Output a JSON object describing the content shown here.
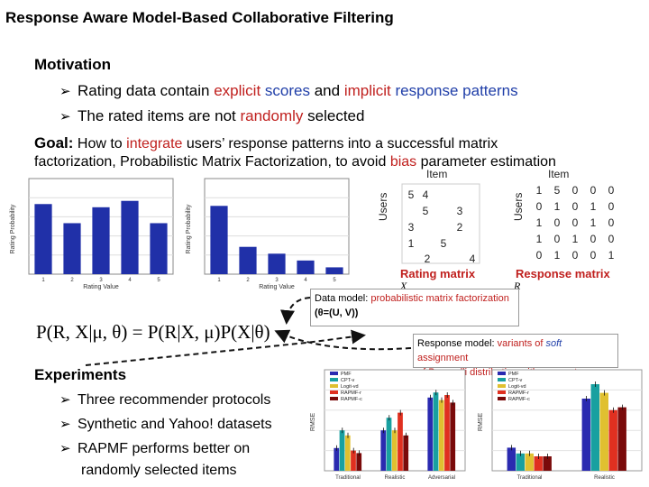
{
  "slide": {
    "title": "Response Aware Model-Based Collaborative Filtering",
    "motivation_heading": "Motivation",
    "motivation_bullets": [
      {
        "pre": "Rating data contain ",
        "red1": "explicit",
        "mid1": " ",
        "blue1": "scores",
        "mid2": " and ",
        "red2": "implicit",
        "mid3": " ",
        "blue2": "response patterns"
      },
      {
        "pre": "The rated items are not ",
        "red1": "randomly",
        "post": " selected"
      }
    ],
    "goal": {
      "label": "Goal:",
      "pre": " How to ",
      "red1": "integrate",
      "post1": " users’ response patterns into a successful matrix",
      "line2_pre": "factorization, Probabilistic Matrix Factorization, to avoid ",
      "red2": "bias",
      "line2_post": " parameter estimation"
    },
    "rating_matrix": {
      "item_label": "Item",
      "users_label": "Users",
      "caption": "Rating matrix",
      "symbol": "X",
      "cells": [
        "5",
        "4",
        "5",
        "3",
        "3",
        "2",
        "1",
        "5",
        "2",
        "4"
      ]
    },
    "response_matrix": {
      "item_label": "Item",
      "users_label": "Users",
      "caption": "Response matrix",
      "symbol": "R",
      "rows": [
        [
          "1",
          "5",
          "0",
          "0",
          "0"
        ],
        [
          "0",
          "1",
          "0",
          "1",
          "0"
        ],
        [
          "1",
          "0",
          "0",
          "1",
          "0"
        ],
        [
          "1",
          "0",
          "1",
          "0",
          "0"
        ],
        [
          "0",
          "1",
          "0",
          "0",
          "1"
        ]
      ]
    },
    "data_model": {
      "pre": "Data model: ",
      "red": "probabilistic matrix factorization",
      "post": " (θ=(U, V))"
    },
    "equation": "P(R, X|μ, θ) = P(R|X, μ)P(X|θ)",
    "response_model": {
      "pre": "Response model: ",
      "red1": "variants of ",
      "blue": "soft",
      "red2": " assignment",
      "line2_red": "of Bernoulli distribution with parameters ",
      "mu": "μ"
    },
    "experiments_heading": "Experiments",
    "experiments_bullets": [
      "Three recommender protocols",
      "Synthetic and Yahoo! datasets",
      "RAPMF performs better on",
      "randomly selected items"
    ],
    "hist1": {
      "xlabel": "Rating Value",
      "ylabel": "Rating Probability"
    },
    "hist2": {
      "xlabel": "Rating Value",
      "ylabel": "Rating Probability"
    },
    "results1": {
      "ylabel": "RMSE",
      "categories": [
        "Traditional",
        "Realistic",
        "Adversarial"
      ],
      "legend": [
        "PMF",
        "CPT-v",
        "Logit-vd",
        "RAPMF-r",
        "RAPMF-c"
      ]
    },
    "results2": {
      "ylabel": "RMSE",
      "categories": [
        "Traditional",
        "Realistic"
      ],
      "legend": [
        "PMF",
        "CPT-v",
        "Logit-vd",
        "RAPMF-r",
        "RAPMF-c"
      ]
    },
    "series_colors": [
      "#2a2ab0",
      "#18a0a0",
      "#e0c030",
      "#e03020",
      "#7a0a0a"
    ]
  },
  "chart_data": [
    {
      "type": "bar",
      "categories": [
        "1",
        "2",
        "3",
        "4",
        "5"
      ],
      "values": [
        0.22,
        0.16,
        0.21,
        0.23,
        0.16
      ],
      "xlabel": "Rating Value",
      "ylabel": "Rating Probability",
      "ylim": [
        0,
        0.3
      ]
    },
    {
      "type": "bar",
      "categories": [
        "1",
        "2",
        "3",
        "4",
        "5"
      ],
      "values": [
        0.5,
        0.2,
        0.15,
        0.1,
        0.05
      ],
      "xlabel": "Rating Value",
      "ylabel": "Rating Probability",
      "ylim": [
        0,
        0.7
      ]
    },
    {
      "type": "bar",
      "categories": [
        "Traditional",
        "Realistic",
        "Adversarial"
      ],
      "series": [
        {
          "name": "PMF",
          "values": [
            0.79,
            0.86,
            0.99
          ]
        },
        {
          "name": "CPT-v",
          "values": [
            0.86,
            0.91,
            1.01
          ]
        },
        {
          "name": "Logit-vd",
          "values": [
            0.84,
            0.86,
            0.98
          ]
        },
        {
          "name": "RAPMF-r",
          "values": [
            0.78,
            0.93,
            1.0
          ]
        },
        {
          "name": "RAPMF-c",
          "values": [
            0.77,
            0.84,
            0.97
          ]
        }
      ],
      "ylabel": "RMSE",
      "ylim": [
        0.7,
        1.1
      ]
    },
    {
      "type": "bar",
      "categories": [
        "Traditional",
        "Realistic"
      ],
      "series": [
        {
          "name": "PMF",
          "values": [
            1.08,
            1.25
          ]
        },
        {
          "name": "CPT-v",
          "values": [
            1.06,
            1.3
          ]
        },
        {
          "name": "Logit-vd",
          "values": [
            1.06,
            1.27
          ]
        },
        {
          "name": "RAPMF-r",
          "values": [
            1.05,
            1.21
          ]
        },
        {
          "name": "RAPMF-c",
          "values": [
            1.05,
            1.22
          ]
        }
      ],
      "ylabel": "RMSE",
      "ylim": [
        1.0,
        1.35
      ]
    }
  ]
}
